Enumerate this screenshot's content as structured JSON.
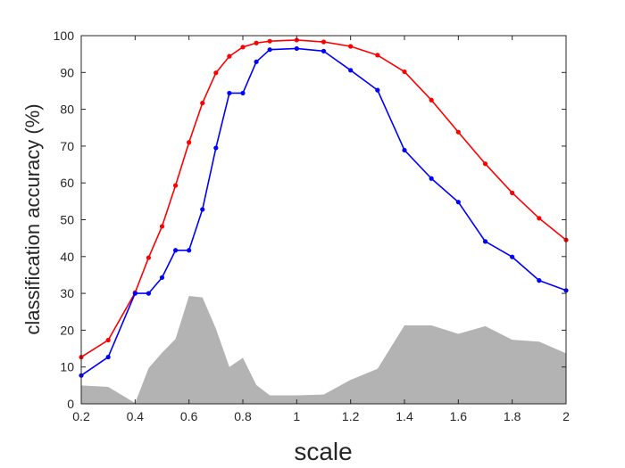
{
  "chart_data": {
    "type": "line",
    "xlabel": "scale",
    "ylabel": "classification accuracy (%)",
    "xlim": [
      0.2,
      2
    ],
    "ylim": [
      0,
      100
    ],
    "xticks": [
      0.2,
      0.4,
      0.6,
      0.8,
      1,
      1.2,
      1.4,
      1.6,
      1.8,
      2
    ],
    "xtick_labels": [
      "0.2",
      "0.4",
      "0.6",
      "0.8",
      "1",
      "1.2",
      "1.4",
      "1.6",
      "1.8",
      "2"
    ],
    "yticks": [
      0,
      10,
      20,
      30,
      40,
      50,
      60,
      70,
      80,
      90,
      100
    ],
    "yticks_labels": [
      "0",
      "10",
      "20",
      "30",
      "40",
      "50",
      "60",
      "70",
      "80",
      "90",
      "100"
    ],
    "grid": false,
    "series": [
      {
        "kind": "line",
        "color": "#ff0000",
        "x": [
          0.2,
          0.3,
          0.4,
          0.45,
          0.5,
          0.55,
          0.6,
          0.65,
          0.7,
          0.75,
          0.8,
          0.85,
          0.9,
          1.0,
          1.1,
          1.2,
          1.3,
          1.4,
          1.5,
          1.6,
          1.7,
          1.8,
          1.9,
          2.0
        ],
        "values": [
          12.7,
          17.3,
          30.2,
          39.7,
          48.2,
          59.3,
          71.0,
          81.7,
          89.9,
          94.4,
          96.9,
          98.0,
          98.5,
          98.8,
          98.3,
          97.1,
          94.7,
          90.2,
          82.5,
          73.8,
          65.2,
          57.3,
          50.4,
          44.5
        ]
      },
      {
        "kind": "line",
        "color": "#0000ff",
        "x": [
          0.2,
          0.3,
          0.4,
          0.45,
          0.5,
          0.55,
          0.6,
          0.65,
          0.7,
          0.75,
          0.8,
          0.85,
          0.9,
          1.0,
          1.1,
          1.2,
          1.3,
          1.4,
          1.5,
          1.6,
          1.7,
          1.8,
          1.9,
          2.0
        ],
        "values": [
          7.7,
          12.7,
          30.0,
          30.0,
          34.3,
          41.7,
          41.7,
          52.8,
          69.5,
          84.4,
          84.4,
          92.9,
          96.2,
          96.5,
          95.8,
          90.6,
          85.2,
          68.9,
          61.2,
          54.8,
          44.1,
          39.9,
          33.5,
          30.8
        ]
      },
      {
        "kind": "area",
        "color": "#b3b3b3",
        "x": [
          0.2,
          0.3,
          0.4,
          0.45,
          0.5,
          0.55,
          0.6,
          0.65,
          0.7,
          0.75,
          0.8,
          0.85,
          0.9,
          1.0,
          1.1,
          1.2,
          1.3,
          1.4,
          1.5,
          1.6,
          1.7,
          1.8,
          1.9,
          2.0
        ],
        "values": [
          5.0,
          4.6,
          0.2,
          9.7,
          13.9,
          17.6,
          29.3,
          28.9,
          20.4,
          10.0,
          12.5,
          5.1,
          2.3,
          2.3,
          2.5,
          6.5,
          9.5,
          21.3,
          21.3,
          19.0,
          21.1,
          17.4,
          16.9,
          13.7
        ]
      }
    ]
  }
}
